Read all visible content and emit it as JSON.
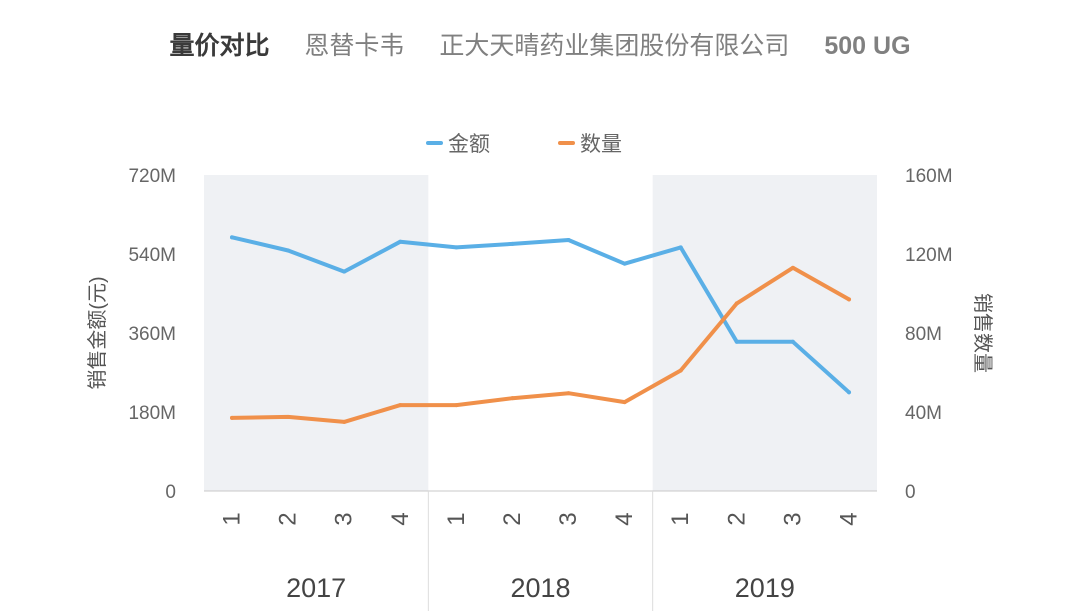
{
  "header": {
    "label": "量价对比",
    "brand": "恩替卡韦",
    "company": "正大天晴药业集团股份有限公司",
    "spec": "500 UG"
  },
  "chart_data": {
    "type": "line",
    "title": "量价对比",
    "dual_axis": true,
    "legend_position": "top-center",
    "categories": [
      {
        "year": "2017",
        "quarter": "1"
      },
      {
        "year": "2017",
        "quarter": "2"
      },
      {
        "year": "2017",
        "quarter": "3"
      },
      {
        "year": "2017",
        "quarter": "4"
      },
      {
        "year": "2018",
        "quarter": "1"
      },
      {
        "year": "2018",
        "quarter": "2"
      },
      {
        "year": "2018",
        "quarter": "3"
      },
      {
        "year": "2018",
        "quarter": "4"
      },
      {
        "year": "2019",
        "quarter": "1"
      },
      {
        "year": "2019",
        "quarter": "2"
      },
      {
        "year": "2019",
        "quarter": "3"
      },
      {
        "year": "2019",
        "quarter": "4"
      }
    ],
    "years": [
      "2017",
      "2018",
      "2019"
    ],
    "shaded_years": [
      "2017",
      "2019"
    ],
    "ylabel_left": "销售金额(元)",
    "ylabel_right": "销售数量",
    "ylim_left": [
      0,
      720
    ],
    "ylim_right": [
      0,
      160
    ],
    "yticks_left": [
      {
        "value": 0,
        "label": "0"
      },
      {
        "value": 180,
        "label": "180M"
      },
      {
        "value": 360,
        "label": "360M"
      },
      {
        "value": 540,
        "label": "540M"
      },
      {
        "value": 720,
        "label": "720M"
      }
    ],
    "yticks_right": [
      {
        "value": 0,
        "label": "0"
      },
      {
        "value": 40,
        "label": "40M"
      },
      {
        "value": 80,
        "label": "80M"
      },
      {
        "value": 120,
        "label": "120M"
      },
      {
        "value": 160,
        "label": "160M"
      }
    ],
    "series": [
      {
        "name": "金额",
        "axis": "left",
        "color": "#5aafe6",
        "unit": "M",
        "values": [
          578,
          548,
          500,
          568,
          555,
          563,
          572,
          518,
          555,
          340,
          340,
          225
        ]
      },
      {
        "name": "数量",
        "axis": "right",
        "color": "#f0904a",
        "unit": "M",
        "values": [
          37,
          37.5,
          35,
          43.5,
          43.5,
          47,
          49.5,
          45,
          61,
          95,
          113,
          97
        ]
      }
    ]
  }
}
